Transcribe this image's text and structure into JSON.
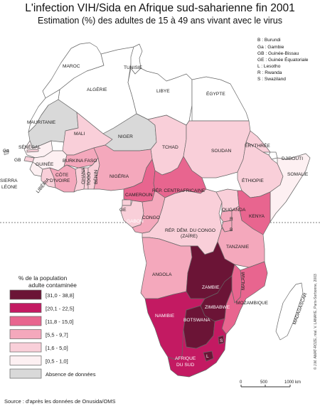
{
  "title": "L'infection VIH/Sida en Afrique sud-saharienne fin 2001",
  "subtitle": "Estimation (%) des adultes de 15 à 49 ans vivant avec le virus",
  "colors": {
    "c1": "#fdf0f2",
    "c2": "#f9cfd9",
    "c3": "#f4a8bc",
    "c4": "#e8658f",
    "c5": "#c31a62",
    "c6": "#6b1436",
    "nodata": "#d9d9d9",
    "none": "#ffffff",
    "ocean": "#ffffff",
    "border": "#666666"
  },
  "abbreviations": [
    "B : Burundi",
    "Ga : Gambie",
    "GB : Guinée-Bissau",
    "GE : Guinée Équatoriale",
    "L : Lesotho",
    "R : Rwanda",
    "S : Swaziland"
  ],
  "legend": {
    "title_line1": "% de la population",
    "title_line2": "adulte contaminée",
    "classes": [
      {
        "label": "[31,0 - 38,8]",
        "color": "#6b1436"
      },
      {
        "label": "[20,1 - 22,5]",
        "color": "#c31a62"
      },
      {
        "label": "[11,8 - 15,0]",
        "color": "#e8658f"
      },
      {
        "label": "[5,5 - 9,7]",
        "color": "#f4a8bc"
      },
      {
        "label": "[1,6 - 5,0]",
        "color": "#f9cfd9"
      },
      {
        "label": "[0,5 - 1,0]",
        "color": "#fdf0f2"
      },
      {
        "label": "Absence de données",
        "color": "#d9d9d9"
      }
    ]
  },
  "scale": {
    "t0": "0",
    "t1": "500",
    "t2": "1000 km"
  },
  "source": "Source : d'après les données de Onusida/OMS",
  "credit": "© J.M. AMAT-ROZE, réal. V. LANAYE, Paris-Sorbonne, 2003",
  "countries": {
    "maroc": "MAROC",
    "tunisie": "TUNISIE",
    "algerie": "ALGÉRIE",
    "libye": "LIBYE",
    "egypte": "ÉGYPTE",
    "mauritanie": "MAURITANIE",
    "mali": "MALI",
    "niger": "NIGER",
    "tchad": "TCHAD",
    "soudan": "SOUDAN",
    "erythree": "ÉRYTHRÉE",
    "djibouti": "DJIBOUTI",
    "senegal": "SÉNÉGAL",
    "ga": "Ga",
    "gb": "GB",
    "guinee": "GUINÉE",
    "sierra1": "SIERRA",
    "sierra2": "LÉONE",
    "liberia": "LIBÉRIA",
    "cotedivoire1": "CÔTE",
    "cotedivoire2": "D'IVOIRE",
    "burkina": "BURKINA FASO",
    "ghana": "GHANA",
    "togo": "TOGO",
    "benin": "BÉNIN",
    "nigeria": "NIGÉRIA",
    "cameroun": "CAMEROUN",
    "rca": "RÉP. CENTRAFRICAINE",
    "ethiopie": "ÉTHIOPIE",
    "somalie": "SOMALIE",
    "ge": "GE",
    "gabon": "GABON",
    "congo": "CONGO",
    "rdc1": "RÉP. DÉM. DU CONGO",
    "rdc2": "(ZAÏRE)",
    "ouganda": "OUGANDA",
    "kenya": "KENYA",
    "r": "R",
    "b": "B",
    "tanzanie": "TANZANIE",
    "angola": "ANGOLA",
    "zambie": "ZAMBIE",
    "malawi": "MALAWI",
    "mozambique": "MOZAMBIQUE",
    "zimbabwe": "ZIMBABWE",
    "namibie": "NAMIBIE",
    "botswana": "BOTSWANA",
    "madagascar": "MADAGASCAR",
    "afriquesud1": "AFRIQUE",
    "afriquesud2": "DU SUD",
    "s": "S",
    "l": "L"
  }
}
